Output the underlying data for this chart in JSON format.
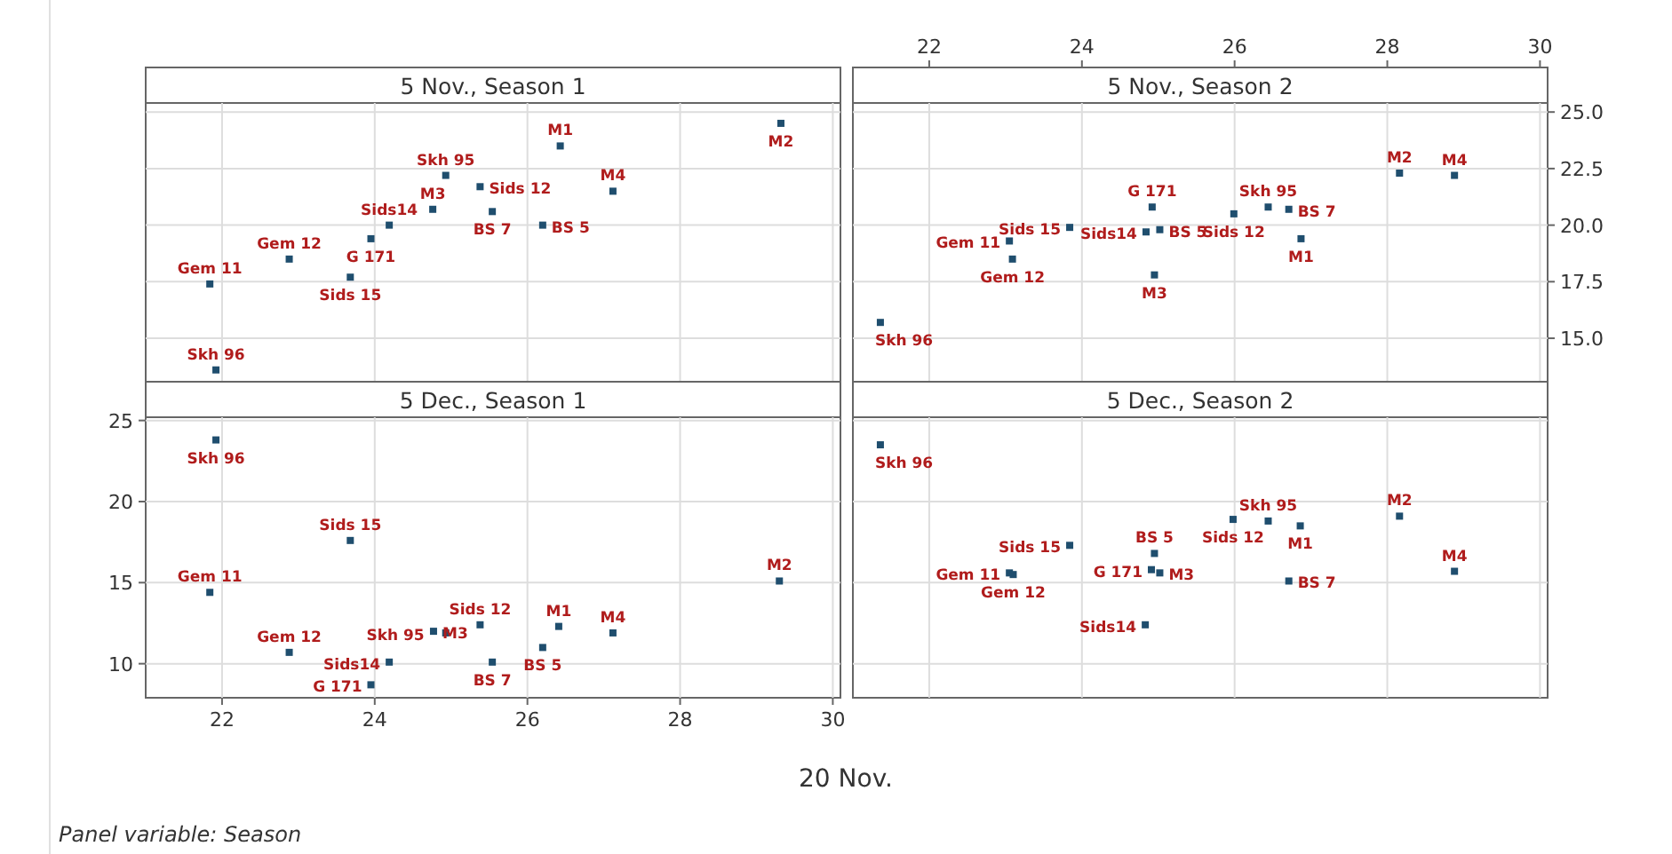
{
  "chart_data": [
    {
      "type": "scatter",
      "title": "5 Nov., Season 1",
      "marker": "square",
      "grid": true,
      "color": "#1f4e6e",
      "tick_labels": false,
      "x": [
        21.92,
        21.84,
        22.88,
        23.68,
        23.95,
        24.19,
        24.76,
        24.93,
        25.38,
        25.54,
        26.2,
        26.43,
        27.12,
        29.32
      ],
      "values": [
        13.6,
        17.4,
        18.5,
        17.7,
        19.4,
        20.0,
        20.7,
        22.2,
        21.7,
        20.6,
        20.0,
        23.5,
        21.5,
        24.5
      ],
      "value_labels": [
        "Skh 96",
        "Gem 11",
        "Gem 12",
        "Sids 15",
        "G 171",
        "Sids14",
        "M3",
        "Skh 95",
        "Sids 12",
        "BS 7",
        "BS 5",
        "M1",
        "M4",
        "M2"
      ],
      "xlim": [
        21,
        30.1
      ],
      "ylim": [
        13.0,
        25.4
      ],
      "xticks": [
        22,
        24,
        26,
        28,
        30
      ],
      "yticks": [
        15,
        17.5,
        20,
        22.5,
        25
      ]
    },
    {
      "type": "scatter",
      "title": "5 Nov., Season 2",
      "marker": "square",
      "grid": true,
      "color": "#1f4e6e",
      "x": [
        21.36,
        23.05,
        23.09,
        23.84,
        24.92,
        24.84,
        24.95,
        26.44,
        25.99,
        26.71,
        25.02,
        26.87,
        28.88,
        28.16
      ],
      "values": [
        15.7,
        19.3,
        18.5,
        19.9,
        20.8,
        19.7,
        17.8,
        20.8,
        20.5,
        20.7,
        19.8,
        19.4,
        22.2,
        22.3
      ],
      "value_labels": [
        "Skh 96",
        "Gem 11",
        "Gem 12",
        "Sids 15",
        "G 171",
        "Sids14",
        "M3",
        "Skh 95",
        "Sids 12",
        "BS 7",
        "BS 5",
        "M1",
        "M4",
        "M2"
      ],
      "xlim": [
        21,
        30.1
      ],
      "ylim": [
        13.0,
        25.4
      ],
      "xticks": [
        22,
        24,
        26,
        28,
        30
      ],
      "yticks": [
        {
          "value": 15,
          "label": "15.0"
        },
        {
          "value": 17.5,
          "label": "17.5"
        },
        {
          "value": 20,
          "label": "20.0"
        },
        {
          "value": 22.5,
          "label": "22.5"
        },
        {
          "value": 25,
          "label": "25.0"
        }
      ]
    },
    {
      "type": "scatter",
      "title": "5 Dec., Season 1",
      "marker": "square",
      "grid": true,
      "color": "#1f4e6e",
      "xlabel": "20 Nov.",
      "annotations": [
        "Panel variable: Season"
      ],
      "x": [
        21.92,
        21.84,
        22.88,
        23.68,
        23.95,
        24.19,
        24.77,
        24.93,
        25.38,
        25.54,
        26.2,
        26.41,
        27.12,
        29.3
      ],
      "values": [
        23.8,
        14.4,
        10.7,
        17.6,
        8.7,
        10.1,
        12.0,
        11.9,
        12.4,
        10.1,
        11.0,
        12.3,
        11.9,
        15.1
      ],
      "value_labels": [
        "Skh 96",
        "Gem 11",
        "Gem 12",
        "Sids 15",
        "G 171",
        "Sids14",
        "M3",
        "Skh 95",
        "Sids 12",
        "BS 7",
        "BS 5",
        "M1",
        "M4",
        "M2"
      ],
      "xlim": [
        21,
        30.1
      ],
      "ylim": [
        7.9,
        25.2
      ],
      "xticks": [
        22,
        24,
        26,
        28,
        30
      ],
      "yticks": [
        10,
        15,
        20,
        25
      ]
    },
    {
      "type": "scatter",
      "title": "5 Dec., Season 2",
      "marker": "square",
      "grid": true,
      "color": "#1f4e6e",
      "tick_labels": false,
      "x": [
        21.36,
        23.05,
        23.1,
        23.84,
        24.91,
        24.83,
        25.02,
        26.44,
        25.98,
        26.71,
        24.95,
        26.86,
        28.88,
        28.16
      ],
      "values": [
        23.5,
        15.6,
        15.5,
        17.3,
        15.8,
        12.4,
        15.6,
        18.8,
        18.9,
        15.1,
        16.8,
        18.5,
        15.7,
        19.1
      ],
      "value_labels": [
        "Skh 96",
        "Gem 11",
        "Gem 12",
        "Sids 15",
        "G 171",
        "Sids14",
        "M3",
        "Skh 95",
        "Sids 12",
        "BS 7",
        "BS 5",
        "M1",
        "M4",
        "M2"
      ],
      "xlim": [
        21,
        30.1
      ],
      "ylim": [
        7.9,
        25.2
      ],
      "xticks": [
        22,
        24,
        26,
        28,
        30
      ],
      "yticks": [
        10,
        15,
        20,
        25
      ]
    }
  ]
}
